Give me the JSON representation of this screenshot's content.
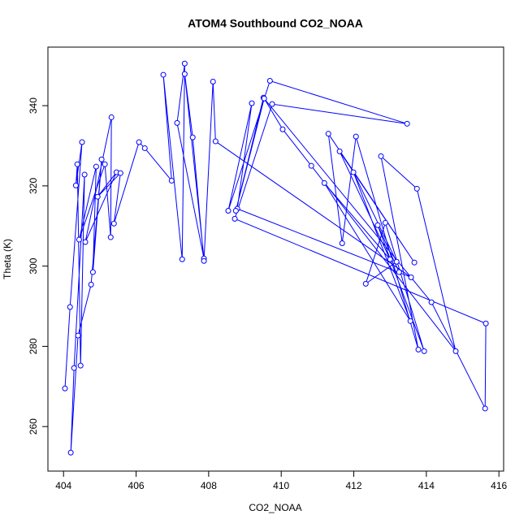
{
  "chart_data": {
    "type": "line",
    "markers": true,
    "title": "ATOM4 Southbound CO2_NOAA",
    "xlabel": "CO2_NOAA",
    "ylabel": "Theta (K)",
    "color": "#0000ff",
    "x": [
      404.04,
      404.18,
      404.51,
      404.34,
      404.38,
      404.47,
      404.58,
      404.29,
      404.2,
      404.4,
      404.76,
      405.05,
      404.81,
      404.9,
      404.43,
      405.14,
      405.3,
      405.32,
      404.6,
      405.46,
      404.94,
      405.57,
      405.39,
      406.08,
      406.24,
      406.98,
      406.75,
      407.27,
      407.34,
      407.13,
      407.87,
      407.34,
      407.56,
      407.87,
      408.12,
      408.19,
      413.58,
      408.79,
      409.19,
      408.54,
      409.69,
      413.47,
      409.75,
      408.72,
      415.64,
      415.62,
      414.14,
      409.51,
      408.75,
      409.53,
      410.04,
      410.83,
      414.81,
      413.74,
      412.75,
      413.78,
      412.06,
      411.68,
      411.3,
      413.67,
      411.61,
      413.0,
      411.19,
      413.56,
      411.99,
      413.18,
      412.33,
      412.87,
      413.94,
      412.66,
      413.25
    ],
    "y": [
      269.5,
      289.8,
      330.9,
      320.1,
      325.4,
      275.2,
      322.8,
      274.6,
      253.5,
      282.7,
      295.4,
      326.6,
      298.5,
      324.8,
      306.6,
      325.4,
      307.2,
      337.1,
      306.0,
      323.4,
      317.3,
      323.2,
      310.6,
      330.9,
      329.4,
      321.3,
      347.7,
      301.7,
      350.5,
      335.7,
      301.9,
      347.9,
      332.1,
      301.3,
      346.0,
      331.1,
      297.2,
      314.3,
      340.6,
      313.8,
      346.2,
      335.5,
      340.4,
      311.8,
      285.7,
      264.5,
      291.0,
      342.0,
      313.8,
      341.8,
      334.1,
      325.0,
      278.8,
      319.3,
      327.4,
      279.2,
      332.3,
      305.7,
      333.0,
      300.9,
      328.6,
      301.7,
      320.7,
      286.3,
      323.4,
      301.1,
      295.6,
      310.8,
      278.8,
      310.2,
      298.5
    ],
    "xlim": [
      403.57,
      416.13
    ],
    "ylim": [
      248.9,
      354.6
    ],
    "xticks": [
      404,
      406,
      408,
      410,
      412,
      414,
      416
    ],
    "yticks": [
      260,
      280,
      300,
      320,
      340
    ]
  }
}
